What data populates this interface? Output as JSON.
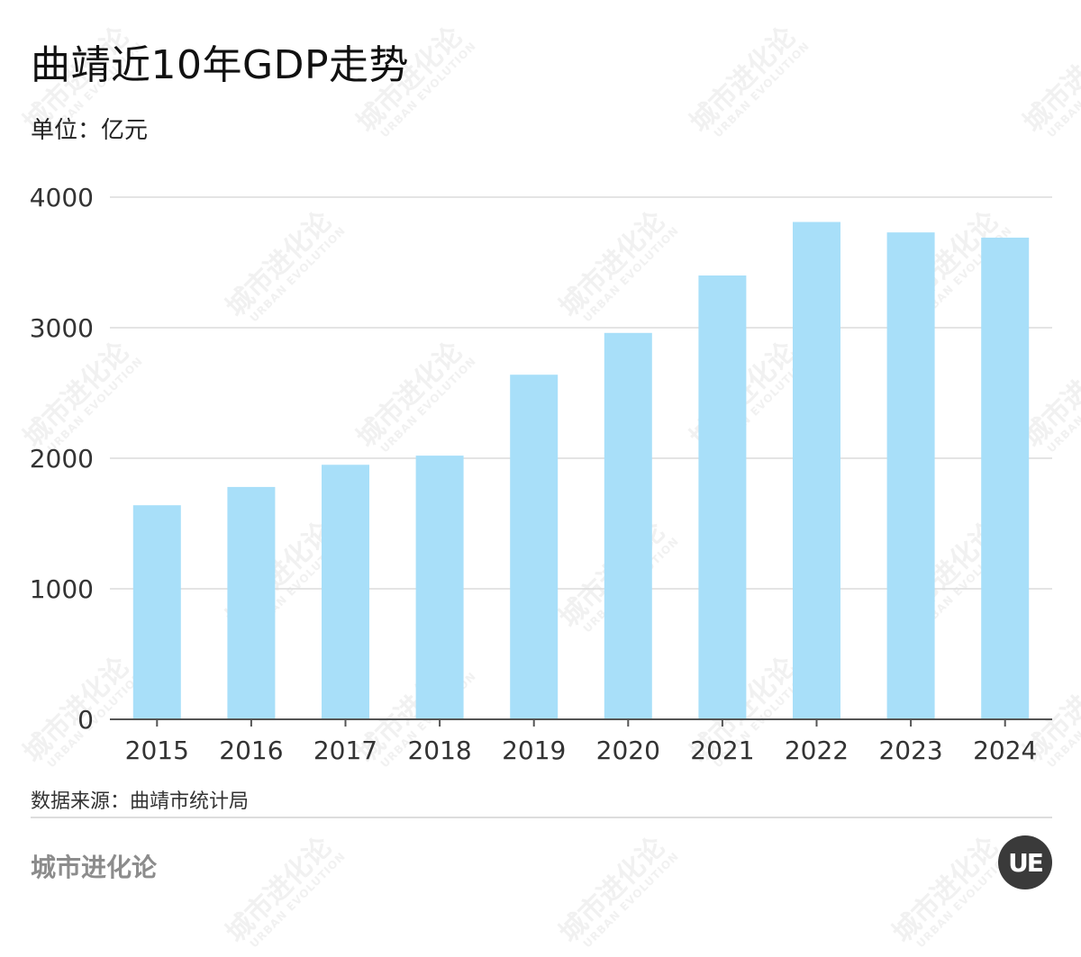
{
  "header": {
    "title": "曲靖近10年GDP走势",
    "unit": "单位：亿元"
  },
  "footer": {
    "source": "数据来源：曲靖市统计局",
    "brand": "城市进化论",
    "logo_text": "UE"
  },
  "watermark": {
    "cn": "城市进化论",
    "en": "URBAN EVOLUTION"
  },
  "colors": {
    "bar": "#a8dff9",
    "grid": "#dcdcdc",
    "axis": "#555555",
    "tick_text": "#333333"
  },
  "chart_data": {
    "type": "bar",
    "categories": [
      "2015",
      "2016",
      "2017",
      "2018",
      "2019",
      "2020",
      "2021",
      "2022",
      "2023",
      "2024"
    ],
    "values": [
      1640,
      1780,
      1950,
      2020,
      2640,
      2960,
      3400,
      3810,
      3730,
      3690
    ],
    "ylim": [
      0,
      4000
    ],
    "yticks": [
      0,
      1000,
      2000,
      3000,
      4000
    ],
    "grid": true,
    "legend": "none"
  }
}
